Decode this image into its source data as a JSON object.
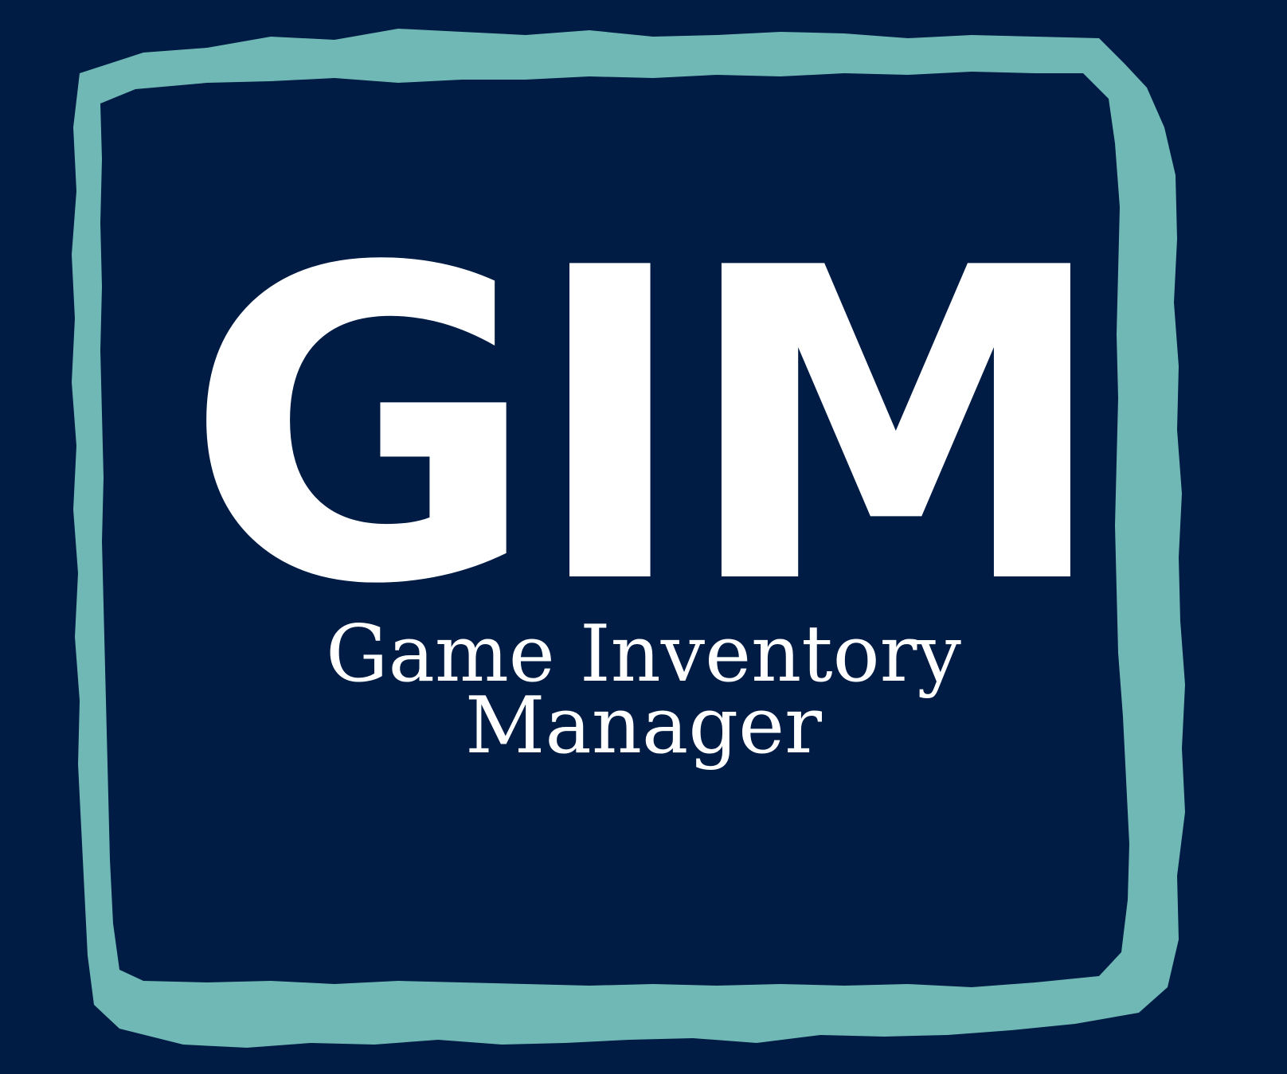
{
  "logo": {
    "acronym": "GIM",
    "title_line_1": "Game Inventory",
    "title_line_2": "Manager"
  },
  "colors": {
    "background": "#001c44",
    "frame": "#6fb8b5",
    "text": "#ffffff"
  }
}
